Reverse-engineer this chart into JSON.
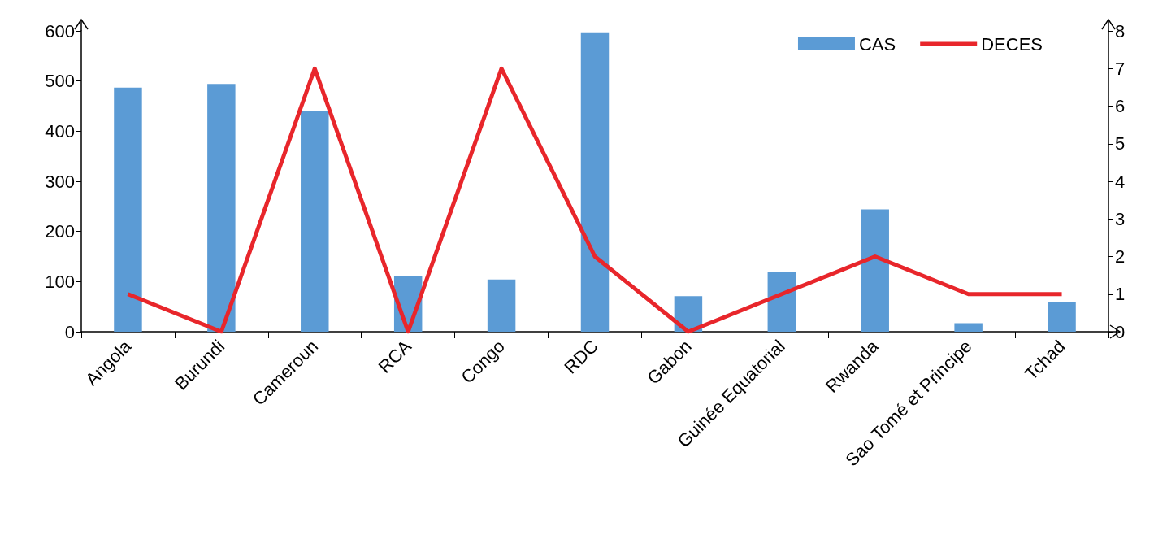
{
  "chart_data": {
    "type": "bar",
    "categories": [
      "Angola",
      "Burundi",
      "Cameroun",
      "RCA",
      "Congo",
      "RDC",
      "Gabon",
      "Guinée Equatorial",
      "Rwanda",
      "Sao Tomé et Principe",
      "Tchad"
    ],
    "series": [
      {
        "name": "CAS",
        "color": "#5b9bd5",
        "values": [
          487,
          494,
          441,
          111,
          104,
          597,
          71,
          120,
          244,
          17,
          60
        ]
      },
      {
        "name": "DECES",
        "type": "line",
        "axis": "y2",
        "color": "#e8262b",
        "values": [
          1,
          0,
          7,
          0,
          7,
          2,
          0,
          1,
          2,
          1,
          1
        ]
      }
    ],
    "ylim": [
      0,
      600
    ],
    "yticks": [
      0,
      100,
      200,
      300,
      400,
      500,
      600
    ],
    "y2lim": [
      0,
      8
    ],
    "y2ticks": [
      0,
      1,
      2,
      3,
      4,
      5,
      6,
      7,
      8
    ],
    "grid": false,
    "legend": "top right",
    "marker": "none",
    "line_style": "solid"
  }
}
